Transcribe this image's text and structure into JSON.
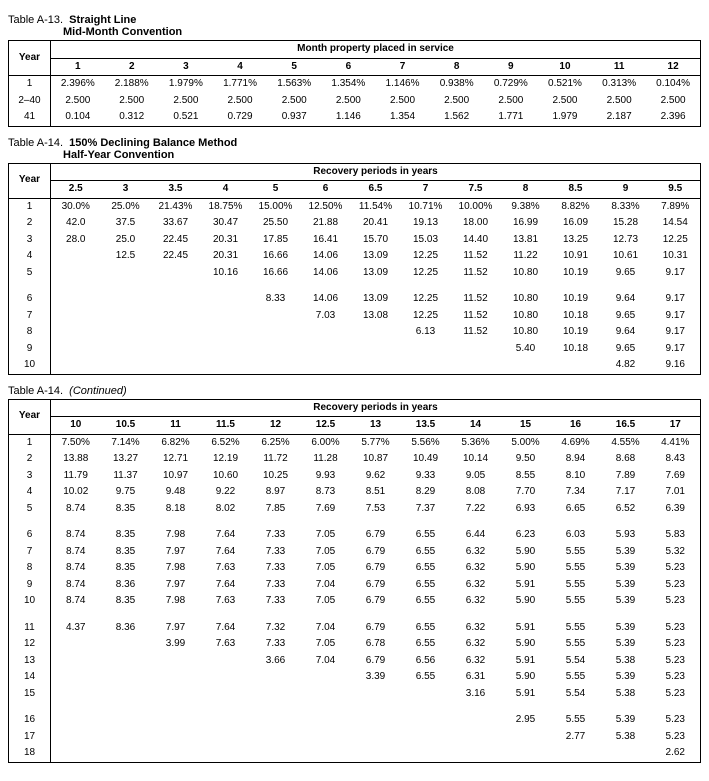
{
  "tableA13": {
    "label": "Table A-13.",
    "title1": "Straight Line",
    "title2": "Mid-Month Convention",
    "colHeader": "Month property placed in service",
    "yearLabel": "Year",
    "months": [
      "1",
      "2",
      "3",
      "4",
      "5",
      "6",
      "7",
      "8",
      "9",
      "10",
      "11",
      "12"
    ],
    "rows": [
      {
        "year": "1",
        "v": [
          "2.396%",
          "2.188%",
          "1.979%",
          "1.771%",
          "1.563%",
          "1.354%",
          "1.146%",
          "0.938%",
          "0.729%",
          "0.521%",
          "0.313%",
          "0.104%"
        ]
      },
      {
        "year": "2–40",
        "v": [
          "2.500",
          "2.500",
          "2.500",
          "2.500",
          "2.500",
          "2.500",
          "2.500",
          "2.500",
          "2.500",
          "2.500",
          "2.500",
          "2.500"
        ]
      },
      {
        "year": "41",
        "v": [
          "0.104",
          "0.312",
          "0.521",
          "0.729",
          "0.937",
          "1.146",
          "1.354",
          "1.562",
          "1.771",
          "1.979",
          "2.187",
          "2.396"
        ]
      }
    ]
  },
  "tableA14a": {
    "label": "Table A-14.",
    "title1": "150% Declining Balance Method",
    "title2": "Half-Year Convention",
    "colHeader": "Recovery periods in years",
    "yearLabel": "Year",
    "periods": [
      "2.5",
      "3",
      "3.5",
      "4",
      "5",
      "6",
      "6.5",
      "7",
      "7.5",
      "8",
      "8.5",
      "9",
      "9.5"
    ],
    "rows": [
      {
        "year": "1",
        "v": [
          "30.0%",
          "25.0%",
          "21.43%",
          "18.75%",
          "15.00%",
          "12.50%",
          "11.54%",
          "10.71%",
          "10.00%",
          "9.38%",
          "8.82%",
          "8.33%",
          "7.89%"
        ]
      },
      {
        "year": "2",
        "v": [
          "42.0",
          "37.5",
          "33.67",
          "30.47",
          "25.50",
          "21.88",
          "20.41",
          "19.13",
          "18.00",
          "16.99",
          "16.09",
          "15.28",
          "14.54"
        ]
      },
      {
        "year": "3",
        "v": [
          "28.0",
          "25.0",
          "22.45",
          "20.31",
          "17.85",
          "16.41",
          "15.70",
          "15.03",
          "14.40",
          "13.81",
          "13.25",
          "12.73",
          "12.25"
        ]
      },
      {
        "year": "4",
        "v": [
          "",
          "12.5",
          "22.45",
          "20.31",
          "16.66",
          "14.06",
          "13.09",
          "12.25",
          "11.52",
          "11.22",
          "10.91",
          "10.61",
          "10.31"
        ]
      },
      {
        "year": "5",
        "v": [
          "",
          "",
          "",
          "10.16",
          "16.66",
          "14.06",
          "13.09",
          "12.25",
          "11.52",
          "10.80",
          "10.19",
          "9.65",
          "9.17"
        ]
      },
      {
        "year": "",
        "v": [
          "",
          "",
          "",
          "",
          "",
          "",
          "",
          "",
          "",
          "",
          "",
          "",
          ""
        ]
      },
      {
        "year": "6",
        "v": [
          "",
          "",
          "",
          "",
          "8.33",
          "14.06",
          "13.09",
          "12.25",
          "11.52",
          "10.80",
          "10.19",
          "9.64",
          "9.17"
        ]
      },
      {
        "year": "7",
        "v": [
          "",
          "",
          "",
          "",
          "",
          "7.03",
          "13.08",
          "12.25",
          "11.52",
          "10.80",
          "10.18",
          "9.65",
          "9.17"
        ]
      },
      {
        "year": "8",
        "v": [
          "",
          "",
          "",
          "",
          "",
          "",
          "",
          "6.13",
          "11.52",
          "10.80",
          "10.19",
          "9.64",
          "9.17"
        ]
      },
      {
        "year": "9",
        "v": [
          "",
          "",
          "",
          "",
          "",
          "",
          "",
          "",
          "",
          "5.40",
          "10.18",
          "9.65",
          "9.17"
        ]
      },
      {
        "year": "10",
        "v": [
          "",
          "",
          "",
          "",
          "",
          "",
          "",
          "",
          "",
          "",
          "",
          "4.82",
          "9.16"
        ]
      }
    ]
  },
  "tableA14b": {
    "label": "Table A-14.",
    "cont": "(Continued)",
    "colHeader": "Recovery periods in years",
    "yearLabel": "Year",
    "periods": [
      "10",
      "10.5",
      "11",
      "11.5",
      "12",
      "12.5",
      "13",
      "13.5",
      "14",
      "15",
      "16",
      "16.5",
      "17"
    ],
    "rows": [
      {
        "year": "1",
        "v": [
          "7.50%",
          "7.14%",
          "6.82%",
          "6.52%",
          "6.25%",
          "6.00%",
          "5.77%",
          "5.56%",
          "5.36%",
          "5.00%",
          "4.69%",
          "4.55%",
          "4.41%"
        ]
      },
      {
        "year": "2",
        "v": [
          "13.88",
          "13.27",
          "12.71",
          "12.19",
          "11.72",
          "11.28",
          "10.87",
          "10.49",
          "10.14",
          "9.50",
          "8.94",
          "8.68",
          "8.43"
        ]
      },
      {
        "year": "3",
        "v": [
          "11.79",
          "11.37",
          "10.97",
          "10.60",
          "10.25",
          "9.93",
          "9.62",
          "9.33",
          "9.05",
          "8.55",
          "8.10",
          "7.89",
          "7.69"
        ]
      },
      {
        "year": "4",
        "v": [
          "10.02",
          "9.75",
          "9.48",
          "9.22",
          "8.97",
          "8.73",
          "8.51",
          "8.29",
          "8.08",
          "7.70",
          "7.34",
          "7.17",
          "7.01"
        ]
      },
      {
        "year": "5",
        "v": [
          "8.74",
          "8.35",
          "8.18",
          "8.02",
          "7.85",
          "7.69",
          "7.53",
          "7.37",
          "7.22",
          "6.93",
          "6.65",
          "6.52",
          "6.39"
        ]
      },
      {
        "year": "",
        "v": [
          "",
          "",
          "",
          "",
          "",
          "",
          "",
          "",
          "",
          "",
          "",
          "",
          ""
        ]
      },
      {
        "year": "6",
        "v": [
          "8.74",
          "8.35",
          "7.98",
          "7.64",
          "7.33",
          "7.05",
          "6.79",
          "6.55",
          "6.44",
          "6.23",
          "6.03",
          "5.93",
          "5.83"
        ]
      },
      {
        "year": "7",
        "v": [
          "8.74",
          "8.35",
          "7.97",
          "7.64",
          "7.33",
          "7.05",
          "6.79",
          "6.55",
          "6.32",
          "5.90",
          "5.55",
          "5.39",
          "5.32"
        ]
      },
      {
        "year": "8",
        "v": [
          "8.74",
          "8.35",
          "7.98",
          "7.63",
          "7.33",
          "7.05",
          "6.79",
          "6.55",
          "6.32",
          "5.90",
          "5.55",
          "5.39",
          "5.23"
        ]
      },
      {
        "year": "9",
        "v": [
          "8.74",
          "8.36",
          "7.97",
          "7.64",
          "7.33",
          "7.04",
          "6.79",
          "6.55",
          "6.32",
          "5.91",
          "5.55",
          "5.39",
          "5.23"
        ]
      },
      {
        "year": "10",
        "v": [
          "8.74",
          "8.35",
          "7.98",
          "7.63",
          "7.33",
          "7.05",
          "6.79",
          "6.55",
          "6.32",
          "5.90",
          "5.55",
          "5.39",
          "5.23"
        ]
      },
      {
        "year": "",
        "v": [
          "",
          "",
          "",
          "",
          "",
          "",
          "",
          "",
          "",
          "",
          "",
          "",
          ""
        ]
      },
      {
        "year": "11",
        "v": [
          "4.37",
          "8.36",
          "7.97",
          "7.64",
          "7.32",
          "7.04",
          "6.79",
          "6.55",
          "6.32",
          "5.91",
          "5.55",
          "5.39",
          "5.23"
        ]
      },
      {
        "year": "12",
        "v": [
          "",
          "",
          "3.99",
          "7.63",
          "7.33",
          "7.05",
          "6.78",
          "6.55",
          "6.32",
          "5.90",
          "5.55",
          "5.39",
          "5.23"
        ]
      },
      {
        "year": "13",
        "v": [
          "",
          "",
          "",
          "",
          "3.66",
          "7.04",
          "6.79",
          "6.56",
          "6.32",
          "5.91",
          "5.54",
          "5.38",
          "5.23"
        ]
      },
      {
        "year": "14",
        "v": [
          "",
          "",
          "",
          "",
          "",
          "",
          "3.39",
          "6.55",
          "6.31",
          "5.90",
          "5.55",
          "5.39",
          "5.23"
        ]
      },
      {
        "year": "15",
        "v": [
          "",
          "",
          "",
          "",
          "",
          "",
          "",
          "",
          "3.16",
          "5.91",
          "5.54",
          "5.38",
          "5.23"
        ]
      },
      {
        "year": "",
        "v": [
          "",
          "",
          "",
          "",
          "",
          "",
          "",
          "",
          "",
          "",
          "",
          "",
          ""
        ]
      },
      {
        "year": "16",
        "v": [
          "",
          "",
          "",
          "",
          "",
          "",
          "",
          "",
          "",
          "2.95",
          "5.55",
          "5.39",
          "5.23"
        ]
      },
      {
        "year": "17",
        "v": [
          "",
          "",
          "",
          "",
          "",
          "",
          "",
          "",
          "",
          "",
          "2.77",
          "5.38",
          "5.23"
        ]
      },
      {
        "year": "18",
        "v": [
          "",
          "",
          "",
          "",
          "",
          "",
          "",
          "",
          "",
          "",
          "",
          "",
          "2.62"
        ]
      }
    ]
  }
}
